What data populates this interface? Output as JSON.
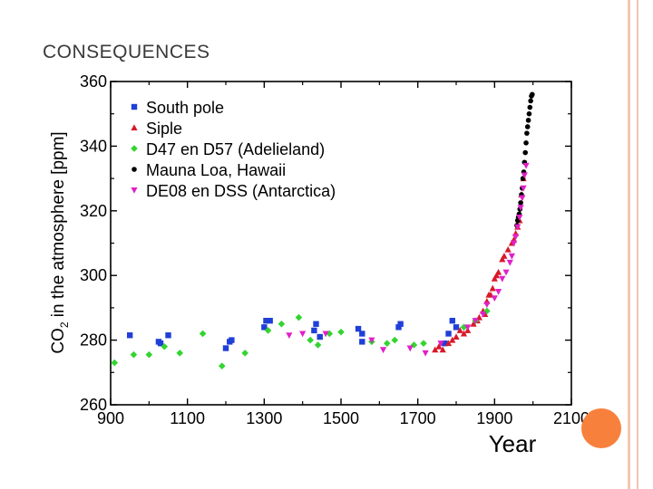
{
  "slide": {
    "title": "CONSEQUENCES"
  },
  "chart_data": {
    "type": "scatter",
    "title": "",
    "xlabel": "Year",
    "ylabel_prefix": "CO",
    "ylabel_sub": "2",
    "ylabel_suffix": " in the atmosphere [ppm]",
    "xlim": [
      900,
      2100
    ],
    "ylim": [
      260,
      360
    ],
    "xticks": [
      900,
      1100,
      1300,
      1500,
      1700,
      1900,
      2100
    ],
    "yticks": [
      260,
      280,
      300,
      320,
      340,
      360
    ],
    "legend_position": "top-left",
    "series": [
      {
        "name": "South pole",
        "marker": "square",
        "color": "#1f3fd8",
        "points": [
          [
            950,
            281.5
          ],
          [
            1025,
            279.5
          ],
          [
            1030,
            279
          ],
          [
            1050,
            281.5
          ],
          [
            1200,
            277.5
          ],
          [
            1210,
            279.5
          ],
          [
            1215,
            280
          ],
          [
            1300,
            284
          ],
          [
            1305,
            286
          ],
          [
            1315,
            286
          ],
          [
            1430,
            283
          ],
          [
            1435,
            285
          ],
          [
            1445,
            281
          ],
          [
            1545,
            283.5
          ],
          [
            1555,
            282
          ],
          [
            1555,
            279.5
          ],
          [
            1650,
            284
          ],
          [
            1655,
            285
          ],
          [
            1770,
            279
          ],
          [
            1780,
            282
          ],
          [
            1790,
            286
          ],
          [
            1800,
            284
          ]
        ]
      },
      {
        "name": "Siple",
        "marker": "triangle-up",
        "color": "#d8182a",
        "points": [
          [
            1745,
            277
          ],
          [
            1755,
            278
          ],
          [
            1765,
            277
          ],
          [
            1780,
            279
          ],
          [
            1790,
            280
          ],
          [
            1800,
            281
          ],
          [
            1810,
            283
          ],
          [
            1820,
            282
          ],
          [
            1830,
            283
          ],
          [
            1845,
            285
          ],
          [
            1855,
            286
          ],
          [
            1860,
            287
          ],
          [
            1870,
            289
          ],
          [
            1875,
            288
          ],
          [
            1880,
            292
          ],
          [
            1885,
            294
          ],
          [
            1890,
            294
          ],
          [
            1895,
            296
          ],
          [
            1900,
            299
          ],
          [
            1905,
            300
          ],
          [
            1910,
            301
          ],
          [
            1920,
            305
          ],
          [
            1925,
            306
          ],
          [
            1935,
            308
          ],
          [
            1945,
            310
          ],
          [
            1950,
            311
          ],
          [
            1955,
            313
          ],
          [
            1960,
            315
          ],
          [
            1965,
            317
          ],
          [
            1970,
            325
          ],
          [
            1975,
            330
          ]
        ]
      },
      {
        "name": "D47 en D57 (Adelieland)",
        "marker": "diamond",
        "color": "#33d430",
        "points": [
          [
            910,
            273
          ],
          [
            960,
            275.5
          ],
          [
            1000,
            275.5
          ],
          [
            1040,
            278
          ],
          [
            1080,
            276
          ],
          [
            1140,
            282
          ],
          [
            1190,
            272
          ],
          [
            1250,
            276
          ],
          [
            1310,
            283
          ],
          [
            1345,
            285
          ],
          [
            1390,
            287
          ],
          [
            1420,
            280
          ],
          [
            1440,
            278.5
          ],
          [
            1470,
            282
          ],
          [
            1500,
            282.5
          ],
          [
            1580,
            279.5
          ],
          [
            1620,
            279
          ],
          [
            1640,
            280
          ],
          [
            1690,
            278.5
          ],
          [
            1715,
            279
          ],
          [
            1820,
            284
          ],
          [
            1850,
            286
          ],
          [
            1880,
            289
          ]
        ]
      },
      {
        "name": "Mauna Loa, Hawaii",
        "marker": "circle",
        "color": "#000000",
        "points": [
          [
            1958,
            315.5
          ],
          [
            1960,
            317
          ],
          [
            1962,
            318
          ],
          [
            1964,
            319
          ],
          [
            1966,
            320.5
          ],
          [
            1968,
            322.5
          ],
          [
            1970,
            325
          ],
          [
            1972,
            327
          ],
          [
            1974,
            330
          ],
          [
            1976,
            332
          ],
          [
            1978,
            335
          ],
          [
            1980,
            338
          ],
          [
            1982,
            341
          ],
          [
            1984,
            344
          ],
          [
            1986,
            346
          ],
          [
            1988,
            348
          ],
          [
            1990,
            350
          ],
          [
            1992,
            352
          ],
          [
            1994,
            354
          ],
          [
            1996,
            355.5
          ],
          [
            1998,
            356
          ]
        ]
      },
      {
        "name": "DE08 en DSS (Antarctica)",
        "marker": "triangle-down",
        "color": "#e020c8",
        "points": [
          [
            1365,
            281.5
          ],
          [
            1400,
            282
          ],
          [
            1460,
            282
          ],
          [
            1580,
            280
          ],
          [
            1610,
            277
          ],
          [
            1680,
            277.5
          ],
          [
            1720,
            276
          ],
          [
            1760,
            279
          ],
          [
            1830,
            284
          ],
          [
            1850,
            286
          ],
          [
            1870,
            288
          ],
          [
            1880,
            291
          ],
          [
            1900,
            293
          ],
          [
            1910,
            295
          ],
          [
            1920,
            299
          ],
          [
            1930,
            301
          ],
          [
            1940,
            304
          ],
          [
            1945,
            306
          ],
          [
            1950,
            310
          ],
          [
            1955,
            312
          ],
          [
            1960,
            315
          ],
          [
            1965,
            318
          ],
          [
            1968,
            321
          ],
          [
            1972,
            324
          ],
          [
            1975,
            327
          ],
          [
            1978,
            331
          ],
          [
            1982,
            334
          ]
        ]
      }
    ]
  }
}
